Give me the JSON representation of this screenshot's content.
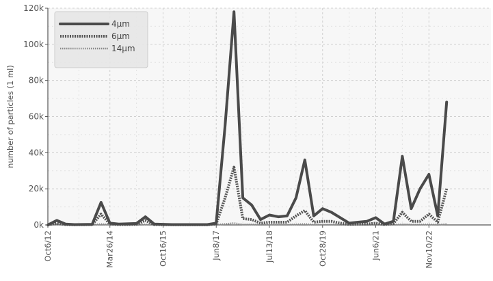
{
  "chart_data": {
    "type": "line",
    "ylabel": "number of particles (1 ml)",
    "y_tick_labels": [
      "0k",
      "20k",
      "40k",
      "60k",
      "80k",
      "100k",
      "120k"
    ],
    "y_tick_values": [
      0,
      20000,
      40000,
      60000,
      80000,
      100000,
      120000
    ],
    "ylim": [
      0,
      120000
    ],
    "x_tick_labels": [
      "Oct6/12",
      "Mar26/14",
      "Oct16/15",
      "Jun8/17",
      "Jul13/18",
      "Oct28/19",
      "Jun6/21",
      "Nov10/22"
    ],
    "x_tick_positions": [
      0,
      7,
      13,
      19,
      25,
      31,
      37,
      43
    ],
    "xlim": [
      0,
      50
    ],
    "grid": true,
    "legend_position": "top-left",
    "series": [
      {
        "name": "4μm",
        "color": "#4a4a4a",
        "style": "solid",
        "points": [
          [
            0,
            0
          ],
          [
            1,
            2500
          ],
          [
            2,
            500
          ],
          [
            3,
            200
          ],
          [
            5,
            300
          ],
          [
            6,
            12500
          ],
          [
            7,
            1000
          ],
          [
            8,
            500
          ],
          [
            10,
            800
          ],
          [
            11,
            4500
          ],
          [
            12,
            500
          ],
          [
            14,
            200
          ],
          [
            16,
            200
          ],
          [
            18,
            200
          ],
          [
            19,
            1000
          ],
          [
            20,
            55000
          ],
          [
            21,
            118000
          ],
          [
            22,
            15000
          ],
          [
            23,
            11000
          ],
          [
            24,
            3000
          ],
          [
            25,
            5500
          ],
          [
            26,
            4500
          ],
          [
            27,
            5000
          ],
          [
            28,
            15000
          ],
          [
            29,
            36000
          ],
          [
            30,
            5000
          ],
          [
            31,
            9000
          ],
          [
            32,
            7000
          ],
          [
            33,
            4000
          ],
          [
            34,
            1000
          ],
          [
            35,
            1500
          ],
          [
            36,
            2000
          ],
          [
            37,
            4000
          ],
          [
            38,
            500
          ],
          [
            39,
            2000
          ],
          [
            40,
            38000
          ],
          [
            41,
            9000
          ],
          [
            42,
            20000
          ],
          [
            43,
            28000
          ],
          [
            44,
            5000
          ],
          [
            45,
            68000
          ]
        ]
      },
      {
        "name": "6μm",
        "color": "#555555",
        "style": "dotted-thick",
        "points": [
          [
            0,
            0
          ],
          [
            1,
            1000
          ],
          [
            2,
            200
          ],
          [
            3,
            100
          ],
          [
            5,
            200
          ],
          [
            6,
            6000
          ],
          [
            7,
            500
          ],
          [
            8,
            200
          ],
          [
            10,
            300
          ],
          [
            11,
            2500
          ],
          [
            12,
            200
          ],
          [
            14,
            100
          ],
          [
            16,
            100
          ],
          [
            18,
            100
          ],
          [
            19,
            500
          ],
          [
            20,
            15000
          ],
          [
            21,
            32000
          ],
          [
            22,
            3500
          ],
          [
            23,
            3000
          ],
          [
            24,
            1000
          ],
          [
            25,
            1500
          ],
          [
            26,
            1500
          ],
          [
            27,
            1500
          ],
          [
            28,
            5000
          ],
          [
            29,
            8000
          ],
          [
            30,
            1500
          ],
          [
            31,
            2000
          ],
          [
            32,
            2000
          ],
          [
            33,
            1000
          ],
          [
            34,
            300
          ],
          [
            35,
            500
          ],
          [
            36,
            500
          ],
          [
            37,
            1000
          ],
          [
            38,
            200
          ],
          [
            39,
            800
          ],
          [
            40,
            7000
          ],
          [
            41,
            2000
          ],
          [
            42,
            2000
          ],
          [
            43,
            6000
          ],
          [
            44,
            1500
          ],
          [
            45,
            20000
          ]
        ]
      },
      {
        "name": "14μm",
        "color": "#888888",
        "style": "dotted-thin",
        "points": [
          [
            0,
            0
          ],
          [
            1,
            300
          ],
          [
            2,
            100
          ],
          [
            3,
            50
          ],
          [
            5,
            50
          ],
          [
            6,
            500
          ],
          [
            7,
            100
          ],
          [
            8,
            50
          ],
          [
            10,
            50
          ],
          [
            11,
            300
          ],
          [
            12,
            50
          ],
          [
            14,
            20
          ],
          [
            16,
            20
          ],
          [
            18,
            20
          ],
          [
            19,
            100
          ],
          [
            20,
            500
          ],
          [
            21,
            1000
          ],
          [
            22,
            300
          ],
          [
            23,
            300
          ],
          [
            24,
            100
          ],
          [
            25,
            200
          ],
          [
            26,
            200
          ],
          [
            27,
            200
          ],
          [
            28,
            300
          ],
          [
            29,
            500
          ],
          [
            30,
            200
          ],
          [
            31,
            200
          ],
          [
            32,
            200
          ],
          [
            33,
            100
          ],
          [
            34,
            50
          ],
          [
            35,
            50
          ],
          [
            36,
            50
          ],
          [
            37,
            100
          ],
          [
            38,
            20
          ],
          [
            39,
            100
          ],
          [
            40,
            400
          ],
          [
            41,
            200
          ],
          [
            42,
            200
          ],
          [
            43,
            300
          ],
          [
            44,
            100
          ],
          [
            45,
            500
          ]
        ]
      }
    ]
  }
}
